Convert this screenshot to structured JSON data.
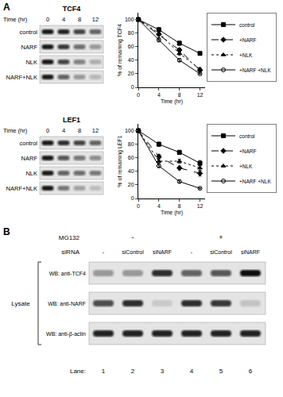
{
  "chart_data": [
    {
      "type": "line",
      "x_label": "Time (hr)",
      "y_label": "% of remaining TCF4",
      "x": [
        0,
        4,
        8,
        12
      ],
      "xlim": [
        0,
        13
      ],
      "xticks": [
        0,
        4,
        8,
        12
      ],
      "ylim": [
        0,
        110
      ],
      "yticks": [
        0,
        20,
        40,
        60,
        80,
        100
      ],
      "grid": false,
      "legend": "right",
      "series": [
        {
          "name": "control",
          "color": "#000000",
          "marker": "square",
          "line_style": "solid",
          "values": [
            100,
            85,
            65,
            50
          ],
          "errors": [
            0,
            3,
            3,
            2
          ]
        },
        {
          "name": "+NARF",
          "color": "#000000",
          "marker": "diamond",
          "line_style": "dash",
          "values": [
            100,
            78,
            55,
            25
          ],
          "errors": [
            0,
            8,
            3,
            2
          ]
        },
        {
          "name": "+NLK",
          "color": "#000000",
          "marker": "triangle-up",
          "line_style": "dot",
          "values": [
            100,
            80,
            50,
            27
          ],
          "errors": [
            0,
            3,
            3,
            2
          ]
        },
        {
          "name": "+NARF +NLK",
          "color": "#000000",
          "marker": "circle-open",
          "line_style": "solid",
          "values": [
            100,
            70,
            40,
            20
          ],
          "errors": [
            0,
            3,
            2,
            1
          ]
        }
      ]
    },
    {
      "type": "line",
      "x_label": "Time (hr)",
      "y_label": "% of remaining LEF1",
      "x": [
        0,
        4,
        8,
        12
      ],
      "xlim": [
        0,
        13
      ],
      "xticks": [
        0,
        4,
        8,
        12
      ],
      "ylim": [
        0,
        110
      ],
      "yticks": [
        0,
        20,
        40,
        60,
        80,
        100
      ],
      "grid": false,
      "legend": "right",
      "series": [
        {
          "name": "control",
          "color": "#000000",
          "marker": "square",
          "line_style": "solid",
          "values": [
            100,
            80,
            68,
            52
          ],
          "errors": [
            0,
            3,
            3,
            4
          ]
        },
        {
          "name": "+NARF",
          "color": "#000000",
          "marker": "diamond",
          "line_style": "dash",
          "values": [
            100,
            62,
            45,
            37
          ],
          "errors": [
            0,
            3,
            3,
            4
          ]
        },
        {
          "name": "+NLK",
          "color": "#000000",
          "marker": "triangle-up",
          "line_style": "dot",
          "values": [
            100,
            55,
            55,
            45
          ],
          "errors": [
            0,
            3,
            3,
            4
          ]
        },
        {
          "name": "+NARF +NLK",
          "color": "#000000",
          "marker": "circle-open",
          "line_style": "solid",
          "values": [
            100,
            48,
            25,
            15
          ],
          "errors": [
            0,
            2,
            2,
            1
          ]
        }
      ]
    }
  ],
  "panel_labels": [
    "A",
    "B"
  ],
  "blots_a": [
    {
      "title": "TCF4",
      "time_label": "Time (hr)",
      "times": [
        0,
        4,
        8,
        12
      ],
      "rows": [
        {
          "label": "control",
          "intensity": [
            0.95,
            0.9,
            0.75,
            0.6
          ]
        },
        {
          "label": "NARF",
          "intensity": [
            0.95,
            0.8,
            0.55,
            0.35
          ]
        },
        {
          "label": "NLK",
          "intensity": [
            0.95,
            0.75,
            0.45,
            0.25
          ]
        },
        {
          "label": "NARF+NLK",
          "intensity": [
            0.95,
            0.6,
            0.35,
            0.2
          ]
        }
      ]
    },
    {
      "title": "LEF1",
      "time_label": "Time (hr)",
      "times": [
        0,
        4,
        8,
        12
      ],
      "rows": [
        {
          "label": "control",
          "intensity": [
            0.95,
            0.85,
            0.75,
            0.6
          ]
        },
        {
          "label": "NARF",
          "intensity": [
            0.95,
            0.65,
            0.5,
            0.4
          ]
        },
        {
          "label": "NLK",
          "intensity": [
            0.95,
            0.6,
            0.55,
            0.5
          ]
        },
        {
          "label": "NARF+NLK",
          "intensity": [
            0.95,
            0.5,
            0.3,
            0.18
          ]
        }
      ]
    }
  ],
  "blot_b": {
    "treatments": [
      {
        "label": "MG132",
        "groups": [
          "-",
          "+"
        ]
      },
      {
        "label": "siRNA",
        "lanes": [
          "-",
          "siControl",
          "siNARF",
          "-",
          "siControl",
          "siNARF"
        ]
      }
    ],
    "group_label": "Lysate",
    "rows": [
      {
        "label": "WB: anti-TCF4",
        "intensity": [
          0.35,
          0.35,
          0.85,
          0.6,
          0.65,
          1
        ]
      },
      {
        "label": "WB: anti-NARF",
        "intensity": [
          0.7,
          0.85,
          0.12,
          0.85,
          0.8,
          0.15
        ]
      },
      {
        "label": "WB: anti-β-actin",
        "intensity": [
          0.9,
          0.9,
          0.9,
          0.9,
          0.9,
          0.9
        ]
      }
    ],
    "lane_label": "Lane:",
    "lanes": [
      1,
      2,
      3,
      4,
      5,
      6
    ]
  }
}
